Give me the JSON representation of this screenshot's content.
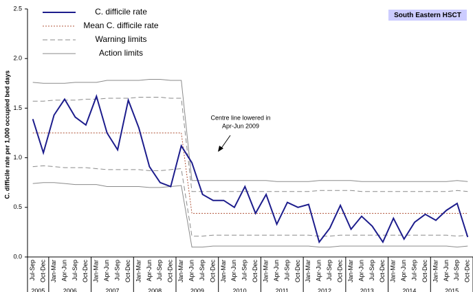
{
  "chart_data": {
    "type": "line",
    "badge": "South Eastern HSCT",
    "ylabel": "C. difficile rate per 1,000 occupied bed days",
    "annotation": [
      "Centre line lowered in",
      "Apr-Jun 2009"
    ],
    "legend": "upper left",
    "ylim": [
      0,
      2.5
    ],
    "yticks": [
      {
        "value": 0,
        "label": "0.0"
      },
      0.5,
      {
        "value": 1,
        "label": "1.0"
      },
      1.5,
      {
        "value": 2,
        "label": "2.0"
      },
      2.5
    ],
    "categories": [
      "Jul-Sep",
      "Oct-Dec",
      "Jan-Mar",
      "Apr-Jun",
      "Jul-Sep",
      "Oct-Dec",
      "Jan-Mar",
      "Apr-Jun",
      "Jul-Sep",
      "Oct-Dec",
      "Jan-Mar",
      "Apr-Jun",
      "Jul-Sep",
      "Oct-Dec",
      "Jan-Mar",
      "Apr-Jun",
      "Jul-Sep",
      "Oct-Dec",
      "Jan-Mar",
      "Apr-Jun",
      "Jul-Sep",
      "Oct-Dec",
      "Jan-Mar",
      "Apr-Jun",
      "Jul-Sep",
      "Oct-Dec",
      "Jan-Mar",
      "Apr-Jun",
      "Jul-Sep",
      "Oct-Dec",
      "Jan-Mar",
      "Apr-Jun",
      "Jul-Sep",
      "Oct-Dec",
      "Jan-Mar",
      "Apr-Jun",
      "Jul-Sep",
      "Oct-Dec",
      "Jan-Mar",
      "Apr-Jun",
      "Jul-Sep",
      "Oct-Dec"
    ],
    "x_groups": [
      {
        "label": "2005",
        "span": 2
      },
      {
        "label": "2006",
        "span": 4
      },
      {
        "label": "2007",
        "span": 4
      },
      {
        "label": "2008",
        "span": 4
      },
      {
        "label": "2009",
        "span": 4
      },
      {
        "label": "2010",
        "span": 4
      },
      {
        "label": "2011",
        "span": 4
      },
      {
        "label": "2012",
        "span": 4
      },
      {
        "label": "2013",
        "span": 4
      },
      {
        "label": "2014",
        "span": 4
      },
      {
        "label": "2015",
        "span": 4
      }
    ],
    "series": [
      {
        "name": "C. difficile rate",
        "color": "#1c1c8c",
        "style": "solid",
        "values": [
          1.39,
          1.05,
          1.43,
          1.59,
          1.41,
          1.33,
          1.62,
          1.25,
          1.08,
          1.58,
          1.3,
          0.91,
          0.75,
          0.71,
          1.12,
          0.95,
          0.63,
          0.57,
          0.57,
          0.5,
          0.71,
          0.44,
          0.63,
          0.33,
          0.55,
          0.5,
          0.53,
          0.15,
          0.29,
          0.52,
          0.28,
          0.41,
          0.31,
          0.15,
          0.39,
          0.18,
          0.35,
          0.43,
          0.37,
          0.47,
          0.54,
          0.2
        ]
      },
      {
        "name": "Mean C. difficile rate",
        "color": "#b0553a",
        "style": "dotted",
        "values": [
          1.25,
          1.25,
          1.25,
          1.25,
          1.25,
          1.25,
          1.25,
          1.25,
          1.25,
          1.25,
          1.25,
          1.25,
          1.25,
          1.25,
          1.25,
          0.44,
          0.44,
          0.44,
          0.44,
          0.44,
          0.44,
          0.44,
          0.44,
          0.44,
          0.44,
          0.44,
          0.44,
          0.44,
          0.44,
          0.44,
          0.44,
          0.44,
          0.44,
          0.44,
          0.44,
          0.44,
          0.44,
          0.44,
          0.44,
          0.44,
          0.44,
          0.44
        ]
      },
      {
        "name": "Warning limits",
        "color": "#8a8a8a",
        "style": "dashed",
        "upper": [
          1.57,
          1.57,
          1.58,
          1.58,
          1.58,
          1.59,
          1.59,
          1.6,
          1.6,
          1.6,
          1.61,
          1.61,
          1.61,
          1.6,
          1.6,
          0.66,
          0.66,
          0.66,
          0.66,
          0.66,
          0.66,
          0.66,
          0.66,
          0.66,
          0.66,
          0.66,
          0.66,
          0.67,
          0.67,
          0.67,
          0.67,
          0.66,
          0.66,
          0.66,
          0.66,
          0.66,
          0.66,
          0.66,
          0.66,
          0.66,
          0.67,
          0.66
        ],
        "lower": [
          0.91,
          0.92,
          0.91,
          0.9,
          0.9,
          0.9,
          0.89,
          0.88,
          0.88,
          0.88,
          0.88,
          0.87,
          0.87,
          0.88,
          0.89,
          0.21,
          0.21,
          0.22,
          0.22,
          0.22,
          0.22,
          0.22,
          0.22,
          0.22,
          0.22,
          0.22,
          0.22,
          0.21,
          0.21,
          0.22,
          0.22,
          0.22,
          0.22,
          0.22,
          0.22,
          0.22,
          0.22,
          0.22,
          0.22,
          0.22,
          0.21,
          0.22
        ]
      },
      {
        "name": "Action limits",
        "color": "#8a8a8a",
        "style": "solid",
        "upper": [
          1.76,
          1.75,
          1.75,
          1.75,
          1.76,
          1.76,
          1.76,
          1.78,
          1.78,
          1.78,
          1.78,
          1.79,
          1.79,
          1.78,
          1.78,
          0.77,
          0.77,
          0.77,
          0.77,
          0.77,
          0.77,
          0.77,
          0.77,
          0.76,
          0.76,
          0.76,
          0.76,
          0.77,
          0.77,
          0.77,
          0.77,
          0.76,
          0.76,
          0.76,
          0.76,
          0.76,
          0.76,
          0.76,
          0.76,
          0.76,
          0.77,
          0.76
        ],
        "lower": [
          0.74,
          0.75,
          0.75,
          0.74,
          0.73,
          0.73,
          0.73,
          0.71,
          0.71,
          0.71,
          0.71,
          0.7,
          0.7,
          0.71,
          0.72,
          0.1,
          0.1,
          0.11,
          0.11,
          0.11,
          0.11,
          0.11,
          0.11,
          0.11,
          0.11,
          0.11,
          0.11,
          0.1,
          0.1,
          0.11,
          0.11,
          0.11,
          0.11,
          0.11,
          0.11,
          0.11,
          0.11,
          0.11,
          0.11,
          0.11,
          0.1,
          0.11
        ]
      }
    ]
  }
}
